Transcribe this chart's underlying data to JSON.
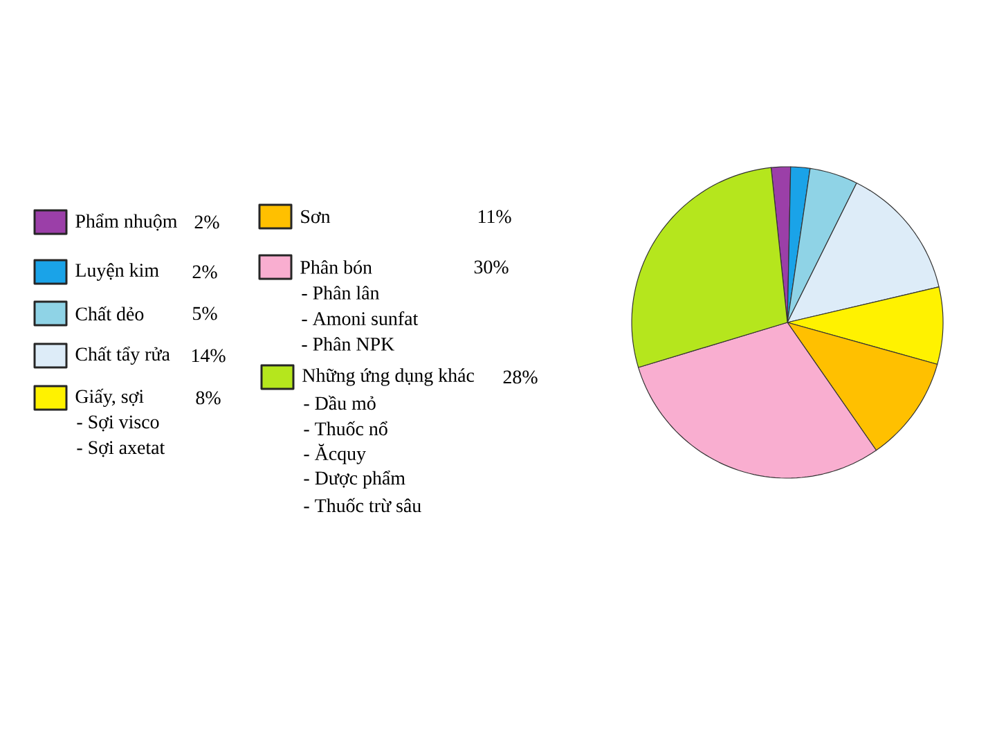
{
  "chart_data": {
    "type": "pie",
    "categories": [
      "Phẩm nhuộm",
      "Luyện kim",
      "Chất dẻo",
      "Chất tẩy rửa",
      "Giấy, sợi",
      "Sơn",
      "Phân bón",
      "Những ứng dụng khác"
    ],
    "values": [
      2,
      2,
      5,
      14,
      8,
      11,
      30,
      28
    ],
    "value_labels": [
      "2%",
      "2%",
      "5%",
      "14%",
      "8%",
      "11%",
      "30%",
      "28%"
    ],
    "colors": [
      "#9b3fa8",
      "#1aa3e8",
      "#8fd3e6",
      "#ddecf8",
      "#fff200",
      "#ffc000",
      "#f9aed0",
      "#b5e61d"
    ],
    "annotations": [
      "- Sợi visco",
      "- Sợi axetat",
      "- Phân lân",
      "- Amoni sunfat",
      "- Phân NPK",
      "- Dầu mỏ",
      "- Thuốc nổ",
      "- Ăcquy",
      "- Dược phẩm",
      "- Thuốc trừ sâu"
    ],
    "legend": "left"
  }
}
